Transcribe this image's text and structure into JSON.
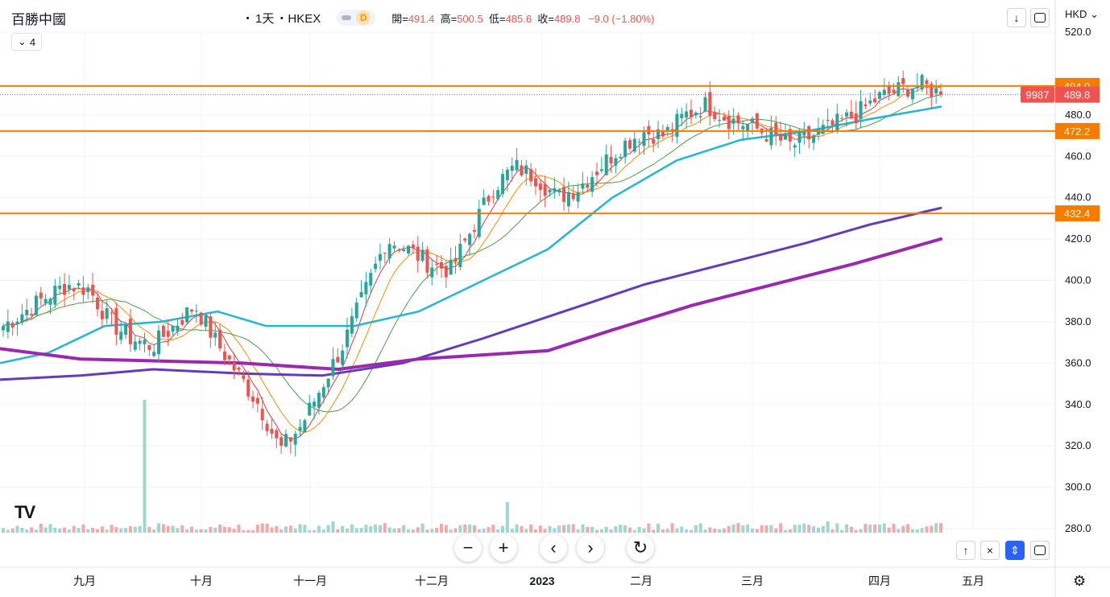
{
  "legend": {
    "symbol": "百勝中國",
    "sep": "・",
    "interval": "1天",
    "exchange": "・HKEX",
    "badge": "D",
    "ohlc": [
      {
        "label": "開=",
        "value": "491.4"
      },
      {
        "label": "高=",
        "value": "500.5"
      },
      {
        "label": "低=",
        "value": "485.6"
      },
      {
        "label": "收=",
        "value": "489.8"
      }
    ],
    "change": "−9.0 (−1.80%)",
    "indicators_count": "4"
  },
  "currency": "HKD",
  "price_axis": {
    "ticks": [
      "520.0",
      "480.0",
      "460.0",
      "440.0",
      "420.0",
      "400.0",
      "380.0",
      "360.0",
      "340.0",
      "320.0",
      "300.0",
      "280.0"
    ]
  },
  "time_axis": {
    "ticks": [
      "九月",
      "十月",
      "十一月",
      "十二月",
      "2023",
      "二月",
      "三月",
      "四月",
      "五月"
    ]
  },
  "labels": {
    "volume_tag": "9987",
    "last_price": "489.8",
    "levels": [
      "494.0",
      "472.2",
      "432.4"
    ]
  },
  "colors": {
    "up": "#26a69a",
    "down": "#ef5350",
    "level_line": "#f57c00",
    "ma_cyan": "#22b8cf",
    "ma_purple": "#673ab7",
    "ma_magenta": "#9c27b0"
  },
  "chart_data": {
    "type": "candlestick",
    "price_range": [
      280,
      520
    ],
    "horizontal_levels": [
      494.0,
      472.2,
      432.4
    ],
    "last_close": 489.8,
    "months": [
      "九月",
      "十月",
      "十一月",
      "十二月",
      "2023",
      "二月",
      "三月",
      "四月",
      "五月"
    ],
    "approx_close_path": [
      378,
      385,
      392,
      398,
      396,
      380,
      372,
      368,
      378,
      388,
      370,
      355,
      340,
      318,
      330,
      350,
      370,
      395,
      420,
      415,
      408,
      405,
      425,
      445,
      455,
      450,
      440,
      445,
      455,
      465,
      472,
      470,
      480,
      485,
      478,
      475,
      470,
      465,
      470,
      475,
      480,
      488,
      492,
      495,
      490
    ],
    "moving_averages": [
      {
        "color": "cyan",
        "start": 360,
        "end": 484
      },
      {
        "color": "purple",
        "start": 352,
        "end": 435
      },
      {
        "color": "magenta",
        "start": 367,
        "end": 420
      }
    ]
  }
}
